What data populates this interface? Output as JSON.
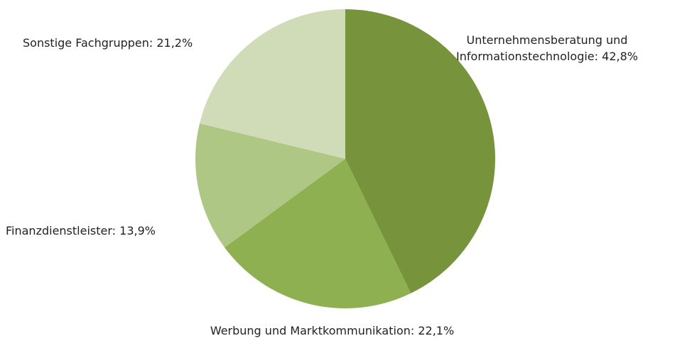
{
  "chart_data": {
    "type": "pie",
    "categories": [
      "Unternehmensberatung und Informationstechnologie:",
      "Werbung und Marktkommunikation:",
      "Finanzdienstleister:",
      "Sonstige Fachgruppen:"
    ],
    "values": [
      42.8,
      22.1,
      13.9,
      21.2
    ],
    "value_labels": [
      "42,8%",
      "22,1%",
      "13,9%",
      "21,2%"
    ],
    "colors": [
      "#77933c",
      "#8fb050",
      "#afc784",
      "#d0dbb8"
    ]
  }
}
